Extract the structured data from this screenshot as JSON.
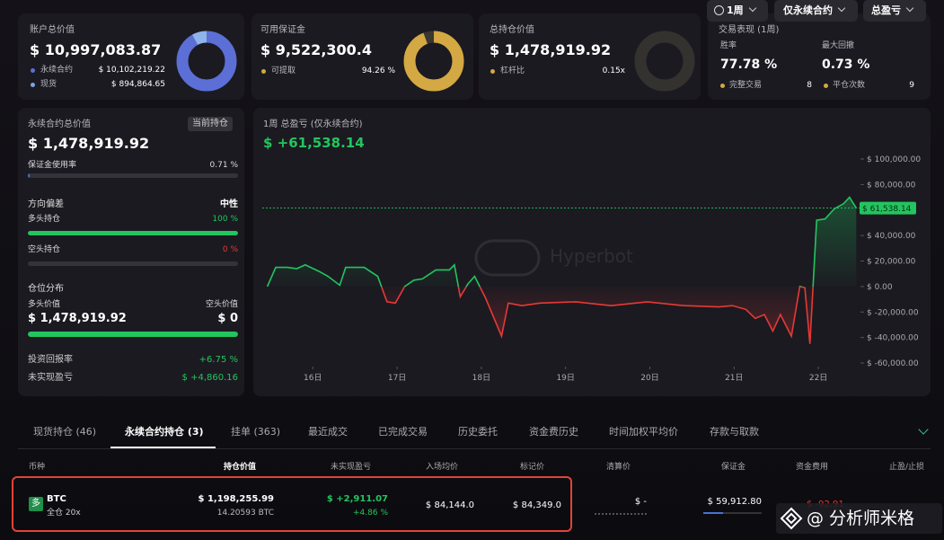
{
  "cards": [
    {
      "label": "账户总价值",
      "value": "$ 10,997,083.87",
      "rows": [
        {
          "label": "永续合约",
          "value": "$ 10,102,219.22"
        },
        {
          "label": "现货",
          "value": "$ 894,864.65"
        }
      ]
    },
    {
      "label": "可用保证金",
      "value": "$ 9,522,300.4",
      "rows": [
        {
          "label": "可提取",
          "value": "94.26 %"
        }
      ]
    },
    {
      "label": "总持仓价值",
      "value": "$ 1,478,919.92",
      "rows": [
        {
          "label": "杠杆比",
          "value": "0.15x"
        }
      ]
    },
    {
      "label": "交易表现 (1周)",
      "stats": [
        {
          "label": "胜率",
          "value": "77.78 %"
        },
        {
          "label": "最大回撤",
          "value": "0.73 %"
        }
      ],
      "rows": [
        {
          "label": "完整交易",
          "value": "8"
        },
        {
          "label": "平仓次数",
          "value": "9"
        }
      ]
    }
  ],
  "summary": {
    "title": "永续合约总价值",
    "badge": "当前持仓",
    "value": "$ 1,478,919.92",
    "margin_usage": {
      "label": "保证金使用率",
      "value": "0.71 %"
    },
    "bias": {
      "label": "方向偏差",
      "value": "中性"
    },
    "long": {
      "label": "多头持仓",
      "value": "100 %"
    },
    "short": {
      "label": "空头持仓",
      "value": "0 %"
    },
    "distribution": {
      "label": "仓位分布",
      "long_label": "多头价值",
      "short_label": "空头价值",
      "long_value": "$ 1,478,919.92",
      "short_value": "$ 0"
    },
    "roi": {
      "label": "投资回报率",
      "value": "+6.75 %"
    },
    "upnl": {
      "label": "未实现盈亏",
      "value": "$ +4,860.16"
    }
  },
  "chart_data": {
    "type": "line",
    "title": "1周 总盈亏 (仅永续合约)",
    "total_pnl": "$ +61,538.14",
    "controls": [
      "1周",
      "仅永续合约",
      "总盈亏"
    ],
    "watermark": "Hyperbot",
    "current_label": "$ 61,538.14",
    "up_color": "#22c55e",
    "down_color": "#e53935",
    "x": [
      15.46,
      15.56,
      15.7,
      15.81,
      15.91,
      16.07,
      16.18,
      16.32,
      16.39,
      16.61,
      16.77,
      16.88,
      16.98,
      17.09,
      17.2,
      17.3,
      17.46,
      17.62,
      17.68,
      17.75,
      17.84,
      17.92,
      18.05,
      18.24,
      18.32,
      18.48,
      18.7,
      19.12,
      19.54,
      19.97,
      20.4,
      20.82,
      20.98,
      21.14,
      21.25,
      21.36,
      21.46,
      21.55,
      21.68,
      21.78,
      21.84,
      21.9,
      21.98,
      22.08,
      22.19,
      22.3,
      22.37,
      22.45
    ],
    "values": [
      0,
      15000,
      15000,
      14000,
      17000,
      12000,
      8000,
      1000,
      15000,
      15000,
      8000,
      -12000,
      -13000,
      0,
      5000,
      6000,
      13000,
      13000,
      17000,
      -8000,
      2000,
      8000,
      -9000,
      -39000,
      -13000,
      -15000,
      -13000,
      -12000,
      -15000,
      -12000,
      -15000,
      -16000,
      -15000,
      -18000,
      -25000,
      -22000,
      -35000,
      -22000,
      -39000,
      0,
      -1000,
      -45000,
      52000,
      53000,
      61000,
      65000,
      70000,
      61538.14
    ],
    "xlim": [
      15.4,
      22.5
    ],
    "xticks": [
      {
        "value": 16,
        "label": "16日"
      },
      {
        "value": 17,
        "label": "17日"
      },
      {
        "value": 18,
        "label": "18日"
      },
      {
        "value": 19,
        "label": "19日"
      },
      {
        "value": 20,
        "label": "20日"
      },
      {
        "value": 21,
        "label": "21日"
      },
      {
        "value": 22,
        "label": "22日"
      }
    ],
    "ylim": [
      -60000,
      100000
    ],
    "yticks": [
      {
        "value": 100000,
        "label": "$ 100,000.00"
      },
      {
        "value": 80000,
        "label": "$ 80,000.00"
      },
      {
        "value": 60000,
        "label": "$ 60,000.00"
      },
      {
        "value": 40000,
        "label": "$ 40,000.00"
      },
      {
        "value": 20000,
        "label": "$ 20,000.00"
      },
      {
        "value": 0,
        "label": "$ 0.00"
      },
      {
        "value": -20000,
        "label": "$ -20,000.00"
      },
      {
        "value": -40000,
        "label": "$ -40,000.00"
      },
      {
        "value": -60000,
        "label": "$ -60,000.00"
      }
    ]
  },
  "tabs": [
    "现货持仓 (46)",
    "永续合约持仓 (3)",
    "挂单 (363)",
    "最近成交",
    "已完成交易",
    "历史委托",
    "资金费历史",
    "时间加权平均价",
    "存款与取款"
  ],
  "active_tab": 1,
  "table": {
    "headers": [
      "币种",
      "持仓价值",
      "未实现盈亏",
      "入场均价",
      "标记价",
      "清算价",
      "保证金",
      "资金费用",
      "止盈/止损"
    ],
    "rows": [
      {
        "side": "多",
        "coin": "BTC",
        "margin_mode": "全仓 20x",
        "value": "$ 1,198,255.99",
        "size": "14.20593 BTC",
        "pnl": "$ +2,911.07",
        "pnl_pct": "+4.86 %",
        "entry": "$ 84,144.0",
        "mark": "$ 84,349.0",
        "liq": "$ -",
        "margin": "$ 59,912.80",
        "funding": "$ -92.91"
      }
    ]
  },
  "credit": "@ 分析师米格"
}
